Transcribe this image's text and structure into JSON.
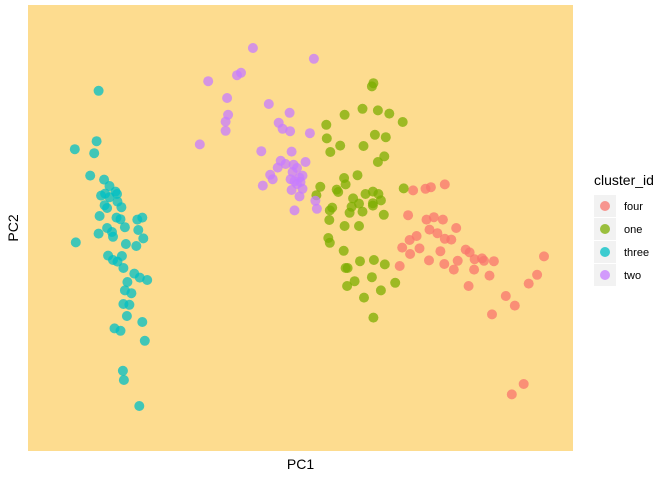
{
  "chart_data": {
    "type": "scatter",
    "title": "",
    "xlabel": "PC1",
    "ylabel": "PC2",
    "xlim": [
      0,
      100
    ],
    "ylim": [
      0,
      100
    ],
    "x_ticks_shown": false,
    "y_ticks_shown": false,
    "grid": false,
    "legend_position": "right",
    "legend_title": "cluster_id",
    "panel_color": "#FDDC8F",
    "series": [
      {
        "name": "four",
        "color": "#F8766D",
        "points": [
          [
            72.7,
            59.4
          ],
          [
            75.2,
            59.8
          ],
          [
            76.3,
            60.2
          ],
          [
            79.1,
            60.9
          ],
          [
            71.7,
            53.2
          ],
          [
            75.4,
            52.1
          ],
          [
            76.9,
            52.7
          ],
          [
            78.7,
            52.1
          ],
          [
            77.6,
            48.7
          ],
          [
            73.4,
            48.0
          ],
          [
            76.0,
            49.6
          ],
          [
            79.1,
            47.3
          ],
          [
            80.4,
            47.1
          ],
          [
            84.1,
            43.9
          ],
          [
            83.3,
            44.6
          ],
          [
            85.1,
            42.2
          ],
          [
            81.7,
            41.8
          ],
          [
            99.1,
            42.9
          ],
          [
            97.7,
            38.3
          ],
          [
            96.0,
            36.1
          ],
          [
            86.6,
            42.4
          ],
          [
            89.0,
            41.7
          ],
          [
            79.0,
            41.0
          ],
          [
            80.9,
            39.6
          ],
          [
            85.0,
            39.6
          ],
          [
            88.1,
            38.1
          ],
          [
            83.9,
            35.5
          ],
          [
            91.4,
            33.0
          ],
          [
            93.2,
            30.6
          ],
          [
            88.6,
            28.4
          ],
          [
            95.0,
            11.0
          ],
          [
            92.6,
            8.4
          ],
          [
            74.0,
            44.9
          ],
          [
            70.5,
            45.1
          ],
          [
            70.0,
            40.5
          ],
          [
            72.1,
            43.5
          ],
          [
            75.9,
            41.9
          ],
          [
            87.0,
            41.8
          ],
          [
            78.2,
            44.2
          ],
          [
            81.4,
            50.0
          ],
          [
            72.0,
            47.0
          ]
        ]
      },
      {
        "name": "one",
        "color": "#7CAE00",
        "points": [
          [
            64.7,
            86.2
          ],
          [
            64.4,
            85.4
          ],
          [
            62.5,
            79.8
          ],
          [
            65.6,
            79.4
          ],
          [
            67.9,
            78.6
          ],
          [
            70.6,
            76.5
          ],
          [
            58.9,
            78.3
          ],
          [
            55.2,
            75.8
          ],
          [
            55.3,
            72.4
          ],
          [
            56.0,
            69.0
          ],
          [
            58.0,
            70.6
          ],
          [
            65.0,
            73.3
          ],
          [
            67.2,
            72.7
          ],
          [
            62.7,
            70.5
          ],
          [
            66.9,
            67.9
          ],
          [
            65.6,
            66.5
          ],
          [
            70.8,
            59.9
          ],
          [
            64.6,
            59.1
          ],
          [
            59.1,
            60.9
          ],
          [
            57.3,
            59.6
          ],
          [
            54.0,
            60.3
          ],
          [
            53.2,
            58.2
          ],
          [
            60.6,
            57.4
          ],
          [
            63.1,
            58.5
          ],
          [
            65.7,
            58.5
          ],
          [
            64.6,
            56.2
          ],
          [
            61.8,
            56.1
          ],
          [
            60.3,
            55.3
          ],
          [
            59.9,
            53.8
          ],
          [
            62.5,
            54.1
          ],
          [
            64.6,
            55.6
          ],
          [
            66.2,
            56.9
          ],
          [
            56.4,
            55.1
          ],
          [
            55.8,
            52.0
          ],
          [
            58.9,
            50.5
          ],
          [
            61.8,
            50.5
          ],
          [
            55.6,
            47.5
          ],
          [
            55.9,
            46.3
          ],
          [
            58.7,
            44.3
          ],
          [
            62.0,
            41.7
          ],
          [
            64.8,
            42.0
          ],
          [
            67.0,
            40.9
          ],
          [
            59.5,
            40.0
          ],
          [
            59.1,
            40.0
          ],
          [
            64.4,
            37.7
          ],
          [
            69.1,
            36.3
          ],
          [
            66.2,
            34.4
          ],
          [
            62.8,
            32.6
          ],
          [
            59.4,
            35.5
          ],
          [
            64.7,
            27.6
          ],
          [
            60.9,
            36.7
          ],
          [
            66.8,
            53.3
          ],
          [
            58.8,
            62.5
          ],
          [
            61.5,
            63.2
          ],
          [
            57.6,
            59.0
          ],
          [
            55.9,
            54.4
          ]
        ]
      },
      {
        "name": "three",
        "color": "#00BFC4",
        "points": [
          [
            9.3,
            84.3
          ],
          [
            8.9,
            71.7
          ],
          [
            4.5,
            69.7
          ],
          [
            8.4,
            68.7
          ],
          [
            7.6,
            63.1
          ],
          [
            10.4,
            62.1
          ],
          [
            11.5,
            60.5
          ],
          [
            12.7,
            59.1
          ],
          [
            13.0,
            58.5
          ],
          [
            11.5,
            57.7
          ],
          [
            13.1,
            56.6
          ],
          [
            10.6,
            58.6
          ],
          [
            9.8,
            58.1
          ],
          [
            10.5,
            55.7
          ],
          [
            11.0,
            55.0
          ],
          [
            13.9,
            55.2
          ],
          [
            12.9,
            52.6
          ],
          [
            13.7,
            52.2
          ],
          [
            18.1,
            52.6
          ],
          [
            17.1,
            52.1
          ],
          [
            14.6,
            50.2
          ],
          [
            17.3,
            49.5
          ],
          [
            9.3,
            48.6
          ],
          [
            12.2,
            47.8
          ],
          [
            18.3,
            47.4
          ],
          [
            14.8,
            46.0
          ],
          [
            16.9,
            45.5
          ],
          [
            4.7,
            46.4
          ],
          [
            11.2,
            43.1
          ],
          [
            12.2,
            42.0
          ],
          [
            13.1,
            41.6
          ],
          [
            14.3,
            40.0
          ],
          [
            16.5,
            38.6
          ],
          [
            17.6,
            37.6
          ],
          [
            19.1,
            37.0
          ],
          [
            15.1,
            36.5
          ],
          [
            14.6,
            34.4
          ],
          [
            15.9,
            33.7
          ],
          [
            15.5,
            30.8
          ],
          [
            14.3,
            31.0
          ],
          [
            15.0,
            28.0
          ],
          [
            18.1,
            26.5
          ],
          [
            13.7,
            24.3
          ],
          [
            12.5,
            24.9
          ],
          [
            18.6,
            21.8
          ],
          [
            14.2,
            14.3
          ],
          [
            14.4,
            12.0
          ],
          [
            17.5,
            5.5
          ],
          [
            9.5,
            53.0
          ],
          [
            12.0,
            49.0
          ],
          [
            14.0,
            43.0
          ],
          [
            11.0,
            50.0
          ]
        ]
      },
      {
        "name": "two",
        "color": "#C77CFF",
        "points": [
          [
            40.4,
            95.0
          ],
          [
            52.7,
            92.3
          ],
          [
            38.0,
            88.8
          ],
          [
            37.2,
            88.2
          ],
          [
            35.2,
            82.5
          ],
          [
            34.9,
            74.3
          ],
          [
            29.7,
            70.9
          ],
          [
            31.4,
            86.7
          ],
          [
            35.4,
            78.3
          ],
          [
            34.9,
            76.6
          ],
          [
            43.6,
            81.0
          ],
          [
            45.6,
            76.3
          ],
          [
            47.8,
            78.8
          ],
          [
            47.9,
            74.2
          ],
          [
            51.9,
            73.7
          ],
          [
            42.1,
            69.2
          ],
          [
            48.2,
            69.1
          ],
          [
            46.0,
            66.8
          ],
          [
            48.6,
            65.8
          ],
          [
            48.4,
            64.0
          ],
          [
            49.3,
            65.0
          ],
          [
            50.4,
            63.1
          ],
          [
            48.0,
            62.2
          ],
          [
            49.8,
            62.6
          ],
          [
            45.4,
            65.1
          ],
          [
            43.9,
            63.3
          ],
          [
            50.0,
            61.5
          ],
          [
            48.8,
            61.7
          ],
          [
            50.4,
            59.8
          ],
          [
            48.2,
            59.5
          ],
          [
            49.3,
            61.0
          ],
          [
            53.0,
            56.8
          ],
          [
            53.3,
            54.8
          ],
          [
            49.8,
            57.9
          ],
          [
            48.8,
            54.4
          ],
          [
            44.4,
            62.2
          ],
          [
            46.4,
            74.8
          ],
          [
            42.4,
            60.6
          ],
          [
            51.0,
            66.5
          ],
          [
            47.0,
            66.0
          ]
        ]
      }
    ]
  }
}
